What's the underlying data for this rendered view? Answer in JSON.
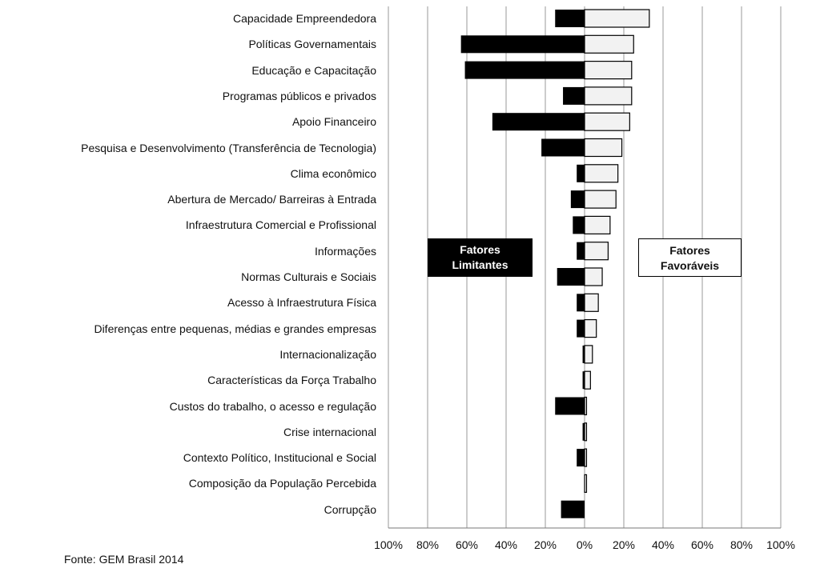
{
  "chart_data": {
    "type": "bar",
    "orientation": "horizontal-diverging",
    "categories": [
      "Capacidade Empreendedora",
      "Políticas Governamentais",
      "Educação e Capacitação",
      "Programas públicos e privados",
      "Apoio Financeiro",
      "Pesquisa e Desenvolvimento (Transferência de Tecnologia)",
      "Clima econômico",
      "Abertura de Mercado/ Barreiras à Entrada",
      "Infraestrutura Comercial e Profissional",
      "Informações",
      "Normas Culturais e Sociais",
      "Acesso à Infraestrutura Física",
      "Diferenças entre pequenas, médias e grandes empresas",
      "Internacionalização",
      "Características da Força Trabalho",
      "Custos do trabalho, o acesso e regulação",
      "Crise internacional",
      "Contexto Político, Institucional e Social",
      "Composição da População Percebida",
      "Corrupção"
    ],
    "series": [
      {
        "name": "Fatores Limitantes",
        "color": "#000000",
        "values": [
          15,
          63,
          61,
          11,
          47,
          22,
          4,
          7,
          6,
          4,
          14,
          4,
          4,
          1,
          1,
          15,
          1,
          4,
          0,
          12
        ]
      },
      {
        "name": "Fatores Favoráveis",
        "color": "#f2f2f2",
        "values": [
          33,
          25,
          24,
          24,
          23,
          19,
          17,
          16,
          13,
          12,
          9,
          7,
          6,
          4,
          3,
          1,
          1,
          1,
          1,
          0
        ]
      }
    ],
    "xlim": [
      -100,
      100
    ],
    "x_ticks": [
      "100%",
      "80%",
      "60%",
      "40%",
      "20%",
      "0%",
      "20%",
      "40%",
      "60%",
      "80%",
      "100%"
    ],
    "grid": true,
    "legend_placement": "center"
  },
  "legend": {
    "limitantes_line1": "Fatores",
    "limitantes_line2": "Limitantes",
    "favoraveis_line1": "Fatores",
    "favoraveis_line2": "Favoráveis"
  },
  "source": "Fonte: GEM Brasil 2014"
}
